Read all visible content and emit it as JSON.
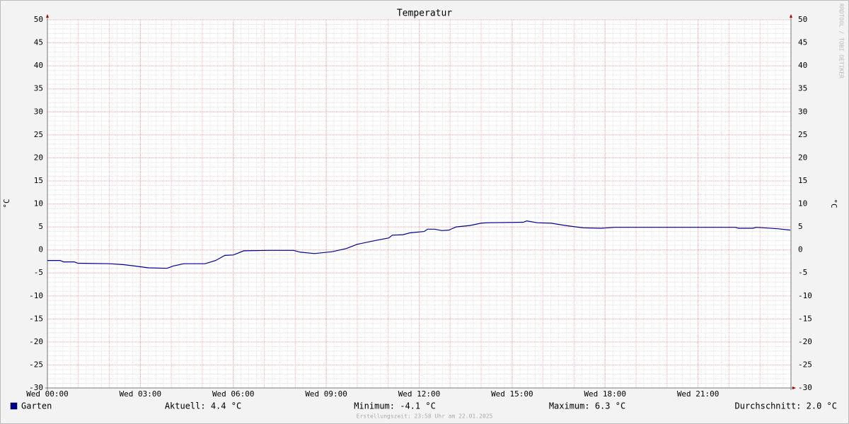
{
  "chart_data": {
    "type": "line",
    "title": "Temperatur",
    "y_label": "°C",
    "watermark": "RRDTOOL / TOBI OETIKER",
    "x": [
      0,
      0.41,
      0.52,
      0.87,
      0.98,
      2.01,
      2.46,
      2.81,
      3.26,
      3.86,
      4.06,
      4.4,
      5.09,
      5.43,
      5.73,
      6.0,
      6.34,
      7.14,
      7.94,
      8.17,
      8.62,
      9.19,
      9.65,
      9.99,
      10.56,
      11.02,
      11.13,
      11.48,
      11.7,
      12.16,
      12.27,
      12.5,
      12.73,
      12.96,
      13.19,
      13.64,
      13.99,
      14.21,
      15.36,
      15.47,
      15.81,
      16.27,
      16.72,
      17.29,
      17.86,
      18.32,
      22.2,
      22.31,
      22.77,
      22.88,
      23.57,
      23.98
    ],
    "series": [
      {
        "name": "Garten",
        "color": "#00008b",
        "values": [
          -2.3,
          -2.3,
          -2.6,
          -2.6,
          -2.9,
          -3.0,
          -3.2,
          -3.5,
          -3.9,
          -4.0,
          -3.5,
          -3.0,
          -3.0,
          -2.3,
          -1.2,
          -1.1,
          -0.2,
          -0.1,
          -0.1,
          -0.5,
          -0.8,
          -0.4,
          0.3,
          1.2,
          2.0,
          2.6,
          3.2,
          3.3,
          3.7,
          4.0,
          4.5,
          4.5,
          4.2,
          4.3,
          5.0,
          5.3,
          5.8,
          5.9,
          6.0,
          6.3,
          5.9,
          5.8,
          5.3,
          4.8,
          4.7,
          4.9,
          4.9,
          4.7,
          4.7,
          4.9,
          4.6,
          4.3
        ]
      }
    ],
    "xlim": [
      0,
      24
    ],
    "xticks": [
      {
        "value": 0,
        "label": "Wed 00:00"
      },
      {
        "value": 3,
        "label": "Wed 03:00"
      },
      {
        "value": 6,
        "label": "Wed 06:00"
      },
      {
        "value": 9,
        "label": "Wed 09:00"
      },
      {
        "value": 12,
        "label": "Wed 12:00"
      },
      {
        "value": 15,
        "label": "Wed 15:00"
      },
      {
        "value": 18,
        "label": "Wed 18:00"
      },
      {
        "value": 21,
        "label": "Wed 21:00"
      }
    ],
    "ylim": [
      -30,
      50
    ],
    "yticks": [
      -30,
      -25,
      -20,
      -15,
      -10,
      -5,
      0,
      5,
      10,
      15,
      20,
      25,
      30,
      35,
      40,
      45,
      50
    ],
    "grid": true,
    "legend_stats": [
      "Aktuell: 4.4 °C",
      "Minimum: -4.1 °C",
      "Maximum: 6.3 °C",
      "Durchschnitt: 2.0 °C"
    ],
    "footer": "Erstellungszeit: 23:58 Uhr am 22.01.2025"
  }
}
